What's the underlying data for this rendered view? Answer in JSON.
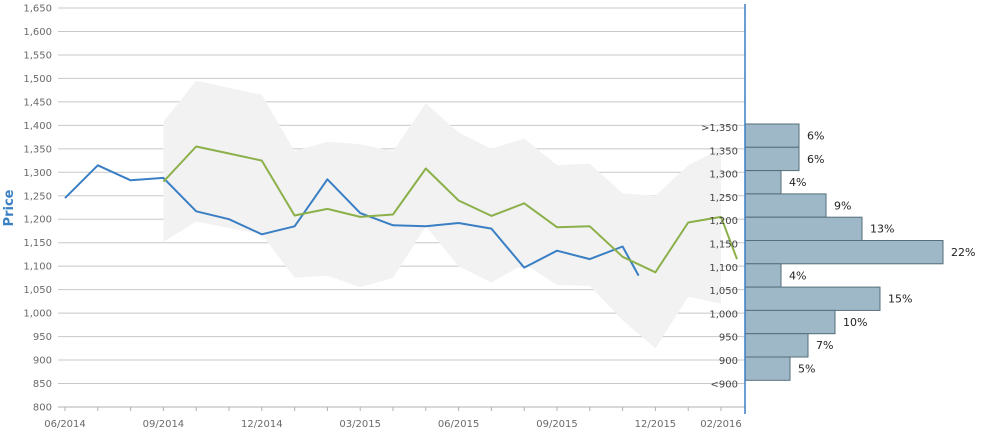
{
  "chart_data": {
    "type": "line",
    "ylabel": "Price",
    "xlabel": "",
    "ylim": [
      800,
      1650
    ],
    "y_ticks": [
      "800",
      "850",
      "900",
      "950",
      "1,000",
      "1,050",
      "1,100",
      "1,150",
      "1,200",
      "1,250",
      "1,300",
      "1,350",
      "1,400",
      "1,450",
      "1,500",
      "1,550",
      "1,600",
      "1,650"
    ],
    "x_ticks": [
      {
        "label": "06/2014",
        "month": 0
      },
      {
        "label": "09/2014",
        "month": 3
      },
      {
        "label": "12/2014",
        "month": 6
      },
      {
        "label": "03/2015",
        "month": 9
      },
      {
        "label": "06/2015",
        "month": 12
      },
      {
        "label": "09/2015",
        "month": 15
      },
      {
        "label": "12/2015",
        "month": 18
      },
      {
        "label": "02/2016",
        "month": 20
      }
    ],
    "grid": true,
    "series": [
      {
        "color": "#3a7fc4",
        "points": [
          [
            "06/2014",
            1245
          ],
          [
            "07/2014",
            1315
          ],
          [
            "08/2014",
            1283
          ],
          [
            "09/2014",
            1288
          ],
          [
            "10/2014",
            1217
          ],
          [
            "11/2014",
            1200
          ],
          [
            "12/2014",
            1168
          ],
          [
            "01/2015",
            1185
          ],
          [
            "02/2015",
            1285
          ],
          [
            "03/2015",
            1213
          ],
          [
            "04/2015",
            1187
          ],
          [
            "05/2015",
            1185
          ],
          [
            "06/2015",
            1192
          ],
          [
            "07/2015",
            1180
          ],
          [
            "08/2015",
            1097
          ],
          [
            "09/2015",
            1133
          ],
          [
            "10/2015",
            1115
          ],
          [
            "11/2015",
            1142
          ],
          [
            "11/2015",
            1080
          ]
        ]
      },
      {
        "color": "#8cb04a",
        "points": [
          [
            "09/2014",
            1280
          ],
          [
            "10/2014",
            1355
          ],
          [
            "11/2014",
            1340
          ],
          [
            "12/2014",
            1325
          ],
          [
            "01/2015",
            1208
          ],
          [
            "02/2015",
            1222
          ],
          [
            "03/2015",
            1205
          ],
          [
            "04/2015",
            1210
          ],
          [
            "05/2015",
            1308
          ],
          [
            "06/2015",
            1240
          ],
          [
            "07/2015",
            1207
          ],
          [
            "08/2015",
            1234
          ],
          [
            "09/2015",
            1183
          ],
          [
            "10/2015",
            1185
          ],
          [
            "11/2015",
            1120
          ],
          [
            "12/2015",
            1087
          ],
          [
            "01/2016",
            1193
          ],
          [
            "02/2016",
            1205
          ],
          [
            "02/2016",
            1115
          ]
        ]
      }
    ],
    "band": {
      "color": "#f2f2f2",
      "upper": [
        [
          "09/2014",
          1408
        ],
        [
          "10/2014",
          1495
        ],
        [
          "12/2014",
          1465
        ],
        [
          "01/2015",
          1345
        ],
        [
          "02/2015",
          1365
        ],
        [
          "03/2015",
          1360
        ],
        [
          "04/2015",
          1345
        ],
        [
          "05/2015",
          1447
        ],
        [
          "06/2015",
          1385
        ],
        [
          "07/2015",
          1350
        ],
        [
          "08/2015",
          1372
        ],
        [
          "09/2015",
          1315
        ],
        [
          "10/2015",
          1318
        ],
        [
          "11/2015",
          1255
        ],
        [
          "12/2015",
          1250
        ],
        [
          "01/2016",
          1315
        ],
        [
          "02/2016",
          1350
        ]
      ],
      "lower": [
        [
          "09/2014",
          1152
        ],
        [
          "10/2014",
          1195
        ],
        [
          "12/2014",
          1168
        ],
        [
          "01/2015",
          1075
        ],
        [
          "02/2015",
          1080
        ],
        [
          "03/2015",
          1055
        ],
        [
          "04/2015",
          1075
        ],
        [
          "05/2015",
          1185
        ],
        [
          "06/2015",
          1100
        ],
        [
          "07/2015",
          1065
        ],
        [
          "08/2015",
          1105
        ],
        [
          "09/2015",
          1060
        ],
        [
          "10/2015",
          1058
        ],
        [
          "11/2015",
          985
        ],
        [
          "12/2015",
          925
        ],
        [
          "01/2016",
          1035
        ],
        [
          "02/2016",
          1020
        ]
      ]
    },
    "histogram": {
      "color": "#9fb8c8",
      "bins": [
        {
          "label": ">1,350",
          "pct": 6,
          "pct_label": "6%"
        },
        {
          "label": "1,350",
          "pct": 6,
          "pct_label": "6%"
        },
        {
          "label": "1,300",
          "pct": 4,
          "pct_label": "4%"
        },
        {
          "label": "1,250",
          "pct": 9,
          "pct_label": "9%"
        },
        {
          "label": "1,200",
          "pct": 13,
          "pct_label": "13%"
        },
        {
          "label": "1,150",
          "pct": 22,
          "pct_label": "22%"
        },
        {
          "label": "1,100",
          "pct": 4,
          "pct_label": "4%"
        },
        {
          "label": "1,050",
          "pct": 15,
          "pct_label": "15%"
        },
        {
          "label": "1,000",
          "pct": 10,
          "pct_label": "10%"
        },
        {
          "label": "950",
          "pct": 7,
          "pct_label": "7%"
        },
        {
          "label": "900",
          "pct": 5,
          "pct_label": "5%"
        },
        {
          "label": "<900",
          "pct": null,
          "pct_label": ""
        }
      ]
    }
  }
}
